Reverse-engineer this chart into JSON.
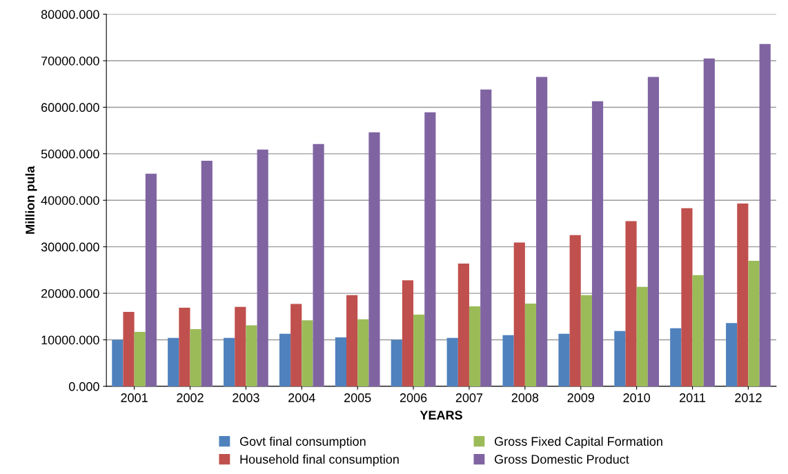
{
  "chart_data": {
    "type": "bar",
    "xlabel": "YEARS",
    "ylabel": "Million pula",
    "categories": [
      "2001",
      "2002",
      "2003",
      "2004",
      "2005",
      "2006",
      "2007",
      "2008",
      "2009",
      "2010",
      "2011",
      "2012"
    ],
    "series": [
      {
        "name": "Govt final consumption",
        "color": "#4f81bd",
        "values": [
          10000,
          10400,
          10400,
          11300,
          10500,
          10000,
          10400,
          11000,
          11300,
          11900,
          12500,
          13600
        ]
      },
      {
        "name": "Household final consumption",
        "color": "#c0504d",
        "values": [
          16000,
          16900,
          17100,
          17700,
          19600,
          22800,
          26400,
          30900,
          32500,
          35500,
          38300,
          39300
        ]
      },
      {
        "name": "Gross Fixed Capital Formation",
        "color": "#9bbb59",
        "values": [
          11700,
          12300,
          13100,
          14200,
          14400,
          15400,
          17200,
          17800,
          19600,
          21400,
          23900,
          27000
        ]
      },
      {
        "name": "Gross Domestic Product",
        "color": "#8064a2",
        "values": [
          45700,
          48500,
          50900,
          52100,
          54600,
          58900,
          63800,
          66500,
          61300,
          66500,
          70500,
          73600
        ]
      }
    ],
    "ylim": [
      0,
      80000
    ],
    "yticks": [
      {
        "value": 0,
        "label": "0.000"
      },
      {
        "value": 10000,
        "label": "10000.000"
      },
      {
        "value": 20000,
        "label": "20000.000"
      },
      {
        "value": 30000,
        "label": "30000.000"
      },
      {
        "value": 40000,
        "label": "40000.000"
      },
      {
        "value": 50000,
        "label": "50000.000"
      },
      {
        "value": 60000,
        "label": "60000.000"
      },
      {
        "value": 70000,
        "label": "70000.000"
      },
      {
        "value": 80000,
        "label": "80000.000"
      }
    ],
    "grid": "y",
    "legend": "bottom"
  }
}
